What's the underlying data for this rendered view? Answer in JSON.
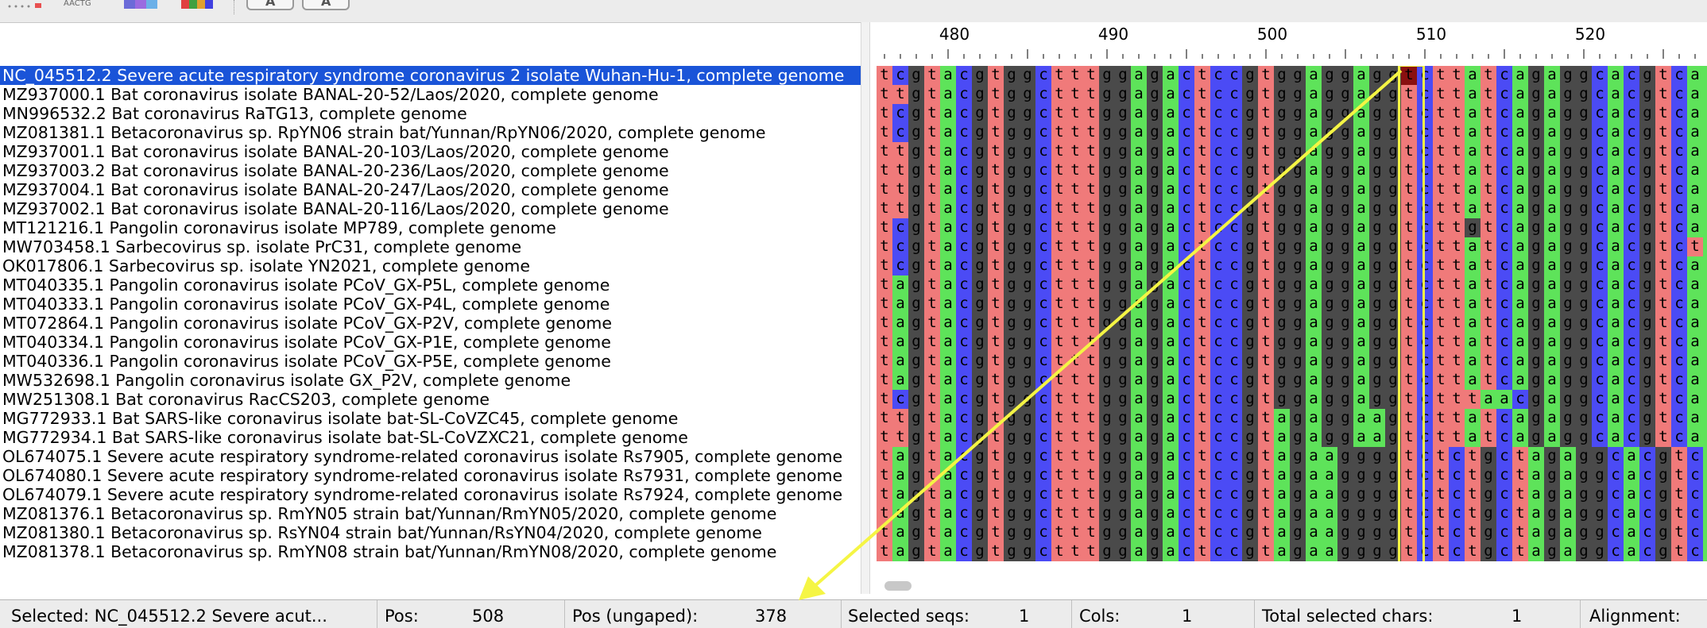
{
  "toolbar": {
    "icons": [
      "dots-icon",
      "aactg-icon",
      "color-swatch-icon",
      "palette-icon"
    ],
    "aactg_text": "AACTG",
    "font_smaller_label": "A",
    "font_larger_label": "A"
  },
  "ruler": {
    "labels": [
      "480",
      "490",
      "500",
      "510",
      "520"
    ]
  },
  "sequences": [
    {
      "name": "NC_045512.2 Severe acute respiratory syndrome coronavirus 2 isolate Wuhan-Hu-1, complete genome",
      "seq": "tcgtacgtggctttggagactccgtggaggaggtcttatcagaggcacgtcaa",
      "selected": true
    },
    {
      "name": "MZ937000.1 Bat coronavirus isolate BANAL-20-52/Laos/2020, complete genome",
      "seq": "ttgtacgtggctttggagactccgtggaggaggtcttatcagaggcacgtcaa"
    },
    {
      "name": "MN996532.2 Bat coronavirus RaTG13, complete genome",
      "seq": "tcgtacgtggctttggagactccgtggaggaggtcttatcagaggcacgtcaa"
    },
    {
      "name": "MZ081381.1 Betacoronavirus sp. RpYN06 strain bat/Yunnan/RpYN06/2020, complete genome",
      "seq": "tcgtacgtggctttggagactccgtggaggaggtcttatcagaggcacgtcaa"
    },
    {
      "name": "MZ937001.1 Bat coronavirus isolate BANAL-20-103/Laos/2020, complete genome",
      "seq": "ttgtacgtggctttggagactccgtggaggaggtcttatcagaggcacgtcaa"
    },
    {
      "name": "MZ937003.2 Bat coronavirus isolate BANAL-20-236/Laos/2020, complete genome",
      "seq": "ttgtacgtggctttggagactccgtggaggaggtcttatcagaggcacgtcaa"
    },
    {
      "name": "MZ937004.1 Bat coronavirus isolate BANAL-20-247/Laos/2020, complete genome",
      "seq": "ttgtacgtggctttggagactccgtggaggaggtcttatcagaggcacgtcaa"
    },
    {
      "name": "MZ937002.1 Bat coronavirus isolate BANAL-20-116/Laos/2020, complete genome",
      "seq": "ttgtacgtggctttggagactccgtggaggaggtcttatcagaggcacgtcaa"
    },
    {
      "name": "MT121216.1 Pangolin coronavirus isolate MP789, complete genome",
      "seq": "tcgtacgtggctttggagactccgtggaggaggtcttgtcagaggcacgtcaa"
    },
    {
      "name": "MW703458.1 Sarbecovirus sp. isolate PrC31, complete genome",
      "seq": "tcgtacgtggctttggagactccgtggaggaggtcttatcagaggcacgtcta"
    },
    {
      "name": "OK017806.1 Sarbecovirus sp. isolate YN2021, complete genome",
      "seq": "tcgtacgtggctttggagactccgtggaggaggtcttatcagaggcacgtcaa"
    },
    {
      "name": "MT040335.1 Pangolin coronavirus isolate PCoV_GX-P5L, complete genome",
      "seq": "tagtacgtggctttggagactccgtggaggaggtcttatcagaggcacgtcaa"
    },
    {
      "name": "MT040333.1 Pangolin coronavirus isolate PCoV_GX-P4L, complete genome",
      "seq": "tagtacgtggctttggagactccgtggaggaggtcttatcagaggcacgtcaa"
    },
    {
      "name": "MT072864.1 Pangolin coronavirus isolate PCoV_GX-P2V, complete genome",
      "seq": "tagtacgtggctttggagactccgtggaggaggtcttatcagaggcacgtcaa"
    },
    {
      "name": "MT040334.1 Pangolin coronavirus isolate PCoV_GX-P1E, complete genome",
      "seq": "tagtacgtggctttggagactccgtggaggaggtcttatcagaggcacgtcaa"
    },
    {
      "name": "MT040336.1 Pangolin coronavirus isolate PCoV_GX-P5E, complete genome",
      "seq": "tagtacgtggctttggagactccgtggaggaggtcttatcagaggcacgtcaa"
    },
    {
      "name": "MW532698.1 Pangolin coronavirus isolate GX_P2V, complete genome",
      "seq": "tagtacgtggctttggagactccgtggaggaggtcttatcagaggcacgtcaa"
    },
    {
      "name": "MW251308.1 Bat coronavirus RacCS203, complete genome",
      "seq": "tcgtacgtggctttggagactccgtggaggaggtctttaacgaggcacgtcaa"
    },
    {
      "name": "MG772933.1 Bat SARS-like coronavirus isolate bat-SL-CoVZC45, complete genome",
      "seq": "ttgtacgtggctttggagactccgtagaggaagtcttatcagaggcacgtcaa"
    },
    {
      "name": "MG772934.1 Bat SARS-like coronavirus isolate bat-SL-CoVZXC21, complete genome",
      "seq": "ttgtacgtggctttggagactccgtagaggaagtcttatcagaggcacgtcaa"
    },
    {
      "name": "OL674075.1 Severe acute respiratory syndrome-related coronavirus isolate Rs7905, complete genome",
      "seq": "tagtacgtggctttggagactccgtagaaggggtctctgctagaggcacgtcaa"
    },
    {
      "name": "OL674080.1 Severe acute respiratory syndrome-related coronavirus isolate Rs7931, complete genome",
      "seq": "tagtacgtggctttggagactccgtagaaggggtctctgctagaggcacgtcaa"
    },
    {
      "name": "OL674079.1 Severe acute respiratory syndrome-related coronavirus isolate Rs7924, complete genome",
      "seq": "tagtacgtggctttggagactccgtagaaggggtctctgctagaggcacgtcaa"
    },
    {
      "name": "MZ081376.1 Betacoronavirus sp. RmYN05 strain bat/Yunnan/RmYN05/2020, complete genome",
      "seq": "tagtacgtggctttggagactccgtagaaggggtctctgctagaggcacgtcaa"
    },
    {
      "name": "MZ081380.1 Betacoronavirus sp. RsYN04 strain bat/Yunnan/RsYN04/2020, complete genome",
      "seq": "tagtacgtggctttggagactccgtagaaggggtctctgctagaggcacgtcaa"
    },
    {
      "name": "MZ081378.1 Betacoronavirus sp. RmYN08 strain bat/Yunnan/RmYN08/2020, complete genome",
      "seq": "tagtacgtggctttggagactccgtagaaggggtctctgctagaggcacgtcaa"
    }
  ],
  "colors": {
    "a": "#5ee35a",
    "c": "#4b4bf5",
    "g": "#4a4a4a",
    "t": "#f07a7a",
    "selected_cell": "#8a1010",
    "highlight": "#f5f544",
    "selection_bg": "#1a54d8"
  },
  "alignment_view": {
    "first_column": 475,
    "selected_column": 508
  },
  "status": {
    "selected_label": "Selected:",
    "selected_value": "NC_045512.2 Severe acut...",
    "pos_label": "Pos:",
    "pos_value": "508",
    "ungaped_label": "Pos (ungaped):",
    "ungaped_value": "378",
    "seqs_label": "Selected seqs:",
    "seqs_value": "1",
    "cols_label": "Cols:",
    "cols_value": "1",
    "chars_label": "Total selected chars:",
    "chars_value": "1",
    "alignment_label": "Alignment:"
  }
}
